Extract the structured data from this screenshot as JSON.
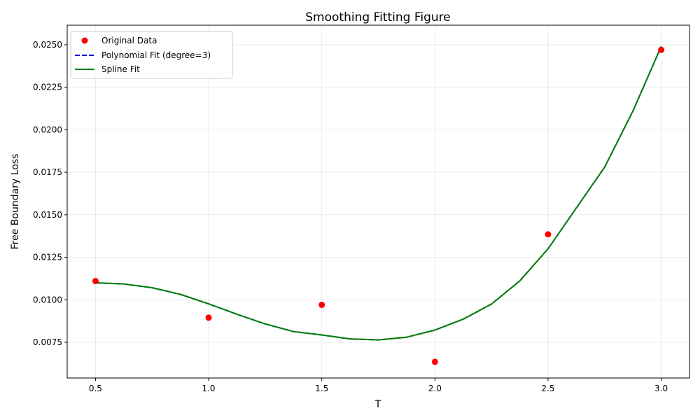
{
  "chart_data": {
    "type": "line",
    "title": "Smoothing Fitting Figure",
    "xlabel": "T",
    "ylabel": "Free Boundary Loss",
    "xlim": [
      0.375,
      3.125
    ],
    "ylim": [
      0.0054,
      0.02615
    ],
    "xticks": [
      0.5,
      1.0,
      1.5,
      2.0,
      2.5,
      3.0
    ],
    "xtick_labels": [
      "0.5",
      "1.0",
      "1.5",
      "2.0",
      "2.5",
      "3.0"
    ],
    "yticks": [
      0.0075,
      0.01,
      0.0125,
      0.015,
      0.0175,
      0.02,
      0.0225,
      0.025
    ],
    "ytick_labels": [
      "0.0075",
      "0.0100",
      "0.0125",
      "0.0150",
      "0.0175",
      "0.0200",
      "0.0225",
      "0.0250"
    ],
    "grid": true,
    "legend_position": "top-left",
    "series": [
      {
        "name": "Original Data",
        "kind": "scatter",
        "color": "#ff0000",
        "x": [
          0.5,
          1.0,
          1.5,
          2.0,
          2.5,
          3.0
        ],
        "y": [
          0.0111,
          0.00895,
          0.0097,
          0.00635,
          0.01385,
          0.0247
        ]
      },
      {
        "name": "Polynomial Fit (degree=3)",
        "kind": "line",
        "style": "dashed",
        "color": "#0000cc",
        "x": [
          0.5,
          0.625,
          0.75,
          0.875,
          1.0,
          1.125,
          1.25,
          1.375,
          1.5,
          1.625,
          1.75,
          1.875,
          2.0,
          2.125,
          2.25,
          2.375,
          2.5,
          2.625,
          2.75,
          2.875,
          3.0
        ],
        "y": [
          0.011,
          0.01093,
          0.01071,
          0.01032,
          0.00976,
          0.00915,
          0.00858,
          0.00813,
          0.00793,
          0.0077,
          0.00764,
          0.0078,
          0.00822,
          0.00886,
          0.00975,
          0.01111,
          0.013,
          0.0154,
          0.0178,
          0.0211,
          0.0249
        ]
      },
      {
        "name": "Spline Fit",
        "kind": "line",
        "style": "solid",
        "color": "#008000",
        "x": [
          0.5,
          0.625,
          0.75,
          0.875,
          1.0,
          1.125,
          1.25,
          1.375,
          1.5,
          1.625,
          1.75,
          1.875,
          2.0,
          2.125,
          2.25,
          2.375,
          2.5,
          2.625,
          2.75,
          2.875,
          3.0
        ],
        "y": [
          0.011,
          0.01093,
          0.01071,
          0.01032,
          0.00976,
          0.00915,
          0.00858,
          0.00813,
          0.00793,
          0.0077,
          0.00764,
          0.0078,
          0.00822,
          0.00886,
          0.00975,
          0.01111,
          0.013,
          0.0154,
          0.0178,
          0.0211,
          0.0249
        ]
      }
    ]
  }
}
